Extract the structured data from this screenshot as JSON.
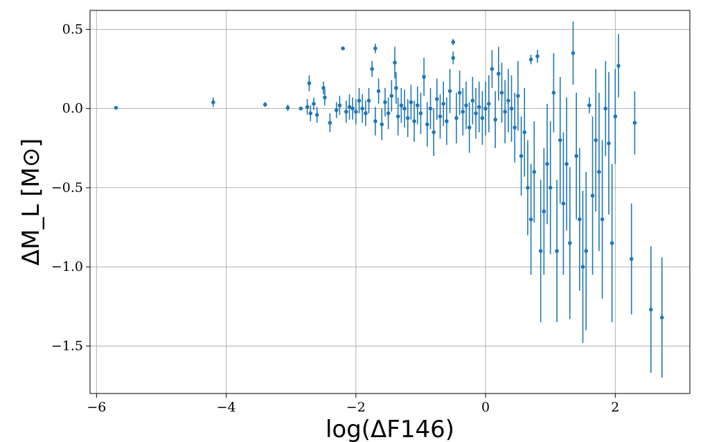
{
  "chart_data": {
    "type": "scatter",
    "title": "",
    "xlabel": "log(ΔF146)",
    "ylabel": "ΔM_L [M⊙]",
    "xlim": [
      -6.1,
      3.15
    ],
    "ylim": [
      -1.8,
      0.62
    ],
    "xticks": [
      -6,
      -4,
      -2,
      0,
      2
    ],
    "yticks": [
      0.5,
      0.0,
      -0.5,
      -1.0,
      -1.5
    ],
    "xtick_labels": [
      "−6",
      "−4",
      "−2",
      "0",
      "2"
    ],
    "ytick_labels": [
      "0.5",
      "0.0",
      "−0.5",
      "−1.0",
      "−1.5"
    ],
    "grid": true,
    "legend": "none",
    "colors": {
      "series": "#1f77b4",
      "grid": "#b0b0b0",
      "axes": "#000000"
    },
    "series": [
      {
        "x": [
          -5.7,
          -4.2,
          -3.4,
          -3.05,
          -2.85,
          -2.75,
          -2.72,
          -2.7,
          -2.65,
          -2.6,
          -2.5,
          -2.48,
          -2.4,
          -2.3,
          -2.25,
          -2.2,
          -2.15,
          -2.1,
          -2.05,
          -2.0,
          -1.95,
          -1.9,
          -1.85,
          -1.8,
          -1.75,
          -1.7,
          -1.7,
          -1.65,
          -1.6,
          -1.55,
          -1.5,
          -1.45,
          -1.4,
          -1.38,
          -1.35,
          -1.3,
          -1.25,
          -1.2,
          -1.15,
          -1.1,
          -1.05,
          -1.0,
          -0.95,
          -0.9,
          -0.85,
          -0.8,
          -0.75,
          -0.7,
          -0.65,
          -0.6,
          -0.55,
          -0.5,
          -0.5,
          -0.45,
          -0.4,
          -0.35,
          -0.3,
          -0.25,
          -0.2,
          -0.15,
          -0.1,
          -0.05,
          0.0,
          0.05,
          0.1,
          0.15,
          0.2,
          0.25,
          0.3,
          0.35,
          0.4,
          0.45,
          0.5,
          0.55,
          0.6,
          0.65,
          0.7,
          0.7,
          0.75,
          0.8,
          0.85,
          0.9,
          0.95,
          1.0,
          1.05,
          1.1,
          1.15,
          1.2,
          1.25,
          1.3,
          1.35,
          1.4,
          1.45,
          1.5,
          1.55,
          1.6,
          1.65,
          1.7,
          1.75,
          1.8,
          1.85,
          1.9,
          1.95,
          2.0,
          2.05,
          2.25,
          2.3,
          2.55,
          2.72
        ],
        "y": [
          0.005,
          0.04,
          0.025,
          0.005,
          0.0,
          0.01,
          0.16,
          -0.03,
          0.03,
          -0.04,
          0.13,
          0.07,
          -0.09,
          -0.01,
          0.02,
          0.38,
          -0.02,
          0.01,
          0.0,
          -0.02,
          0.05,
          0.0,
          -0.03,
          0.05,
          0.25,
          0.38,
          -0.08,
          0.11,
          -0.1,
          0.04,
          -0.03,
          0.08,
          0.29,
          0.13,
          -0.05,
          0.02,
          0.0,
          -0.06,
          0.04,
          -0.08,
          0.02,
          -0.03,
          0.2,
          -0.1,
          0.0,
          -0.15,
          0.06,
          -0.05,
          0.03,
          -0.08,
          0.11,
          0.42,
          0.32,
          -0.06,
          0.1,
          -0.02,
          0.02,
          -0.12,
          0.05,
          -0.03,
          0.01,
          -0.06,
          0.0,
          0.03,
          0.25,
          -0.07,
          0.22,
          0.1,
          -0.02,
          0.05,
          0.0,
          -0.12,
          0.08,
          -0.3,
          -0.15,
          -0.5,
          0.31,
          -0.7,
          -0.4,
          0.33,
          -0.9,
          -0.65,
          -0.35,
          -0.5,
          0.1,
          -0.9,
          -0.2,
          -0.6,
          -0.35,
          -0.85,
          0.35,
          -0.3,
          -0.7,
          -1.0,
          -0.9,
          0.02,
          -0.55,
          -0.2,
          -0.4,
          -0.7,
          0.0,
          -0.22,
          -0.85,
          -0.05,
          0.27,
          -0.95,
          -0.09,
          -1.27,
          -1.32
        ],
        "yerr": [
          0.005,
          0.03,
          0.015,
          0.02,
          0.01,
          0.05,
          0.05,
          0.05,
          0.04,
          0.05,
          0.04,
          0.05,
          0.06,
          0.05,
          0.06,
          0.01,
          0.07,
          0.08,
          0.07,
          0.08,
          0.08,
          0.09,
          0.08,
          0.08,
          0.05,
          0.03,
          0.09,
          0.08,
          0.1,
          0.09,
          0.1,
          0.1,
          0.1,
          0.1,
          0.12,
          0.11,
          0.12,
          0.12,
          0.11,
          0.13,
          0.12,
          0.13,
          0.12,
          0.14,
          0.13,
          0.15,
          0.13,
          0.14,
          0.14,
          0.15,
          0.14,
          0.02,
          0.04,
          0.16,
          0.14,
          0.15,
          0.15,
          0.16,
          0.15,
          0.16,
          0.16,
          0.17,
          0.17,
          0.18,
          0.12,
          0.18,
          0.17,
          0.19,
          0.2,
          0.2,
          0.21,
          0.22,
          0.22,
          0.25,
          0.28,
          0.3,
          0.03,
          0.35,
          0.32,
          0.04,
          0.45,
          0.4,
          0.38,
          0.42,
          0.25,
          0.45,
          0.4,
          0.45,
          0.42,
          0.48,
          0.2,
          0.4,
          0.45,
          0.48,
          0.5,
          0.05,
          0.5,
          0.45,
          0.5,
          0.5,
          0.3,
          0.45,
          0.5,
          0.3,
          0.2,
          0.35,
          0.2,
          0.4,
          0.38
        ]
      }
    ]
  }
}
